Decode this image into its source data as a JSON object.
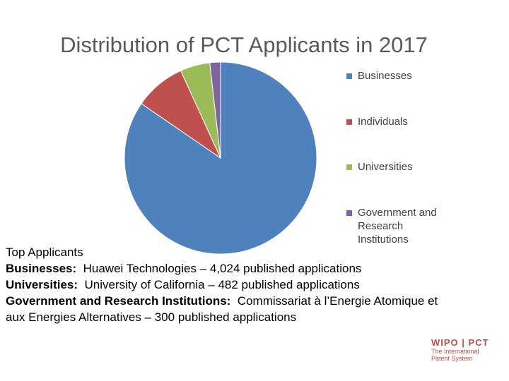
{
  "chart_data": {
    "type": "pie",
    "title": "Distribution of PCT Applicants in 2017",
    "categories": [
      "Businesses",
      "Individuals",
      "Universities",
      "Government and Research Institutions"
    ],
    "values": [
      84.6,
      8.6,
      5,
      1.8
    ],
    "colors": [
      "#4f81bd",
      "#c0504d",
      "#9bbb59",
      "#8064a2"
    ],
    "legend": "right"
  },
  "notes": {
    "heading": "Top Applicants",
    "lines": [
      {
        "label": "Businesses:",
        "text": "Huawei Technologies – 4,024 published applications"
      },
      {
        "label": "Universities:",
        "text": "University of California – 482 published applications"
      },
      {
        "label": "Government and Research Institutions:",
        "text": "Commissariat à l’Energie Atomique et aux Energies Alternatives – 300 published applications"
      }
    ]
  },
  "logo": {
    "left": "WIPO",
    "right": "PCT",
    "tagline": [
      "The International",
      "Patent System"
    ]
  }
}
